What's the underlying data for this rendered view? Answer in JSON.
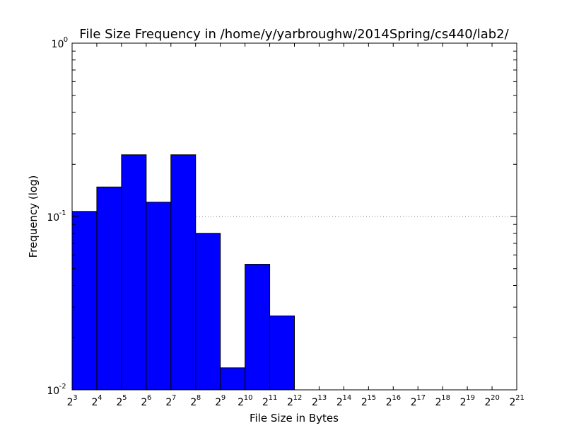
{
  "chart_data": {
    "type": "bar",
    "title": "File Size Frequency in /home/y/yarbroughw/2014Spring/cs440/lab2/",
    "xlabel": "File Size in Bytes",
    "ylabel": "Frequency (log)",
    "yscale": "log",
    "ylim": [
      0.01,
      1
    ],
    "grid": "dotted line at y = 0.1",
    "x_tick_base": "2",
    "x_tick_exponents": [
      "3",
      "4",
      "5",
      "6",
      "7",
      "8",
      "9",
      "10",
      "11",
      "12",
      "13",
      "14",
      "15",
      "16",
      "17",
      "18",
      "19",
      "20",
      "21"
    ],
    "y_tick_base": "10",
    "y_ticks": [
      {
        "exponent": "-2",
        "value": 0.01
      },
      {
        "exponent": "-1",
        "value": 0.1
      },
      {
        "exponent": "0",
        "value": 1
      }
    ],
    "bins": [
      {
        "from": 3,
        "to": 4,
        "value": 0.107
      },
      {
        "from": 4,
        "to": 5,
        "value": 0.148
      },
      {
        "from": 5,
        "to": 6,
        "value": 0.227
      },
      {
        "from": 6,
        "to": 7,
        "value": 0.121
      },
      {
        "from": 7,
        "to": 8,
        "value": 0.227
      },
      {
        "from": 8,
        "to": 9,
        "value": 0.08
      },
      {
        "from": 9,
        "to": 10,
        "value": 0.0134
      },
      {
        "from": 10,
        "to": 11,
        "value": 0.053
      },
      {
        "from": 11,
        "to": 12,
        "value": 0.0267
      }
    ],
    "bar_color": "#0000ff",
    "edge_color": "#000000"
  }
}
